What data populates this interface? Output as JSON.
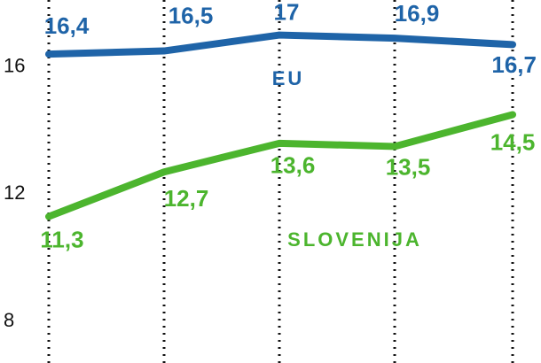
{
  "chart_data": {
    "type": "line",
    "categories": [
      null,
      null,
      null,
      null,
      null
    ],
    "series": [
      {
        "name": "EU",
        "color": "#1f64a8",
        "values": [
          16.4,
          16.5,
          17,
          16.9,
          16.7
        ],
        "value_labels": [
          "16,4",
          "16,5",
          "17",
          "16,9",
          "16,7"
        ]
      },
      {
        "name": "SLOVENIJA",
        "color": "#4cb52e",
        "values": [
          11.3,
          12.7,
          13.6,
          13.5,
          14.5
        ],
        "value_labels": [
          "11,3",
          "12,7",
          "13,6",
          "13,5",
          "14,5"
        ]
      }
    ],
    "ylim": [
      6.7,
      18.1
    ],
    "yticks": [
      8,
      12,
      16
    ]
  }
}
